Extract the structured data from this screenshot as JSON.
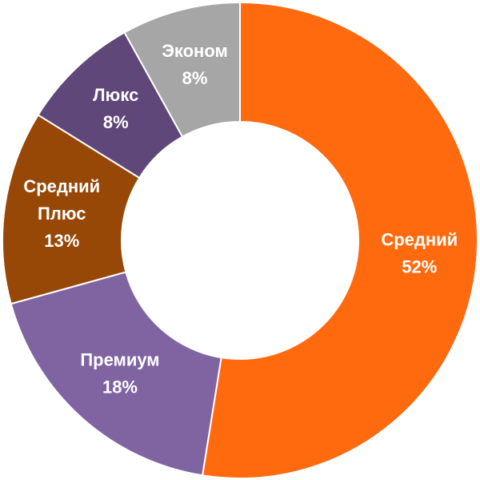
{
  "chart_data": {
    "type": "pie",
    "variant": "donut",
    "start_angle_deg": 0,
    "direction": "clockwise",
    "slices": [
      {
        "label_lines": [
          "Средний"
        ],
        "percent_text": "52%",
        "value": 52,
        "color": "#ff6a0f",
        "text_color": "#ffffff"
      },
      {
        "label_lines": [
          "Премиум"
        ],
        "percent_text": "18%",
        "value": 18,
        "color": "#8064a2",
        "text_color": "#ffffff"
      },
      {
        "label_lines": [
          "Средний",
          "Плюс"
        ],
        "percent_text": "13%",
        "value": 13,
        "color": "#974806",
        "text_color": "#ffffff"
      },
      {
        "label_lines": [
          "Люкс"
        ],
        "percent_text": "8%",
        "value": 8,
        "color": "#5f4879",
        "text_color": "#ffffff"
      },
      {
        "label_lines": [
          "Эконом"
        ],
        "percent_text": "8%",
        "value": 8,
        "color": "#a6a6a6",
        "text_color": "#ffffff"
      }
    ]
  }
}
